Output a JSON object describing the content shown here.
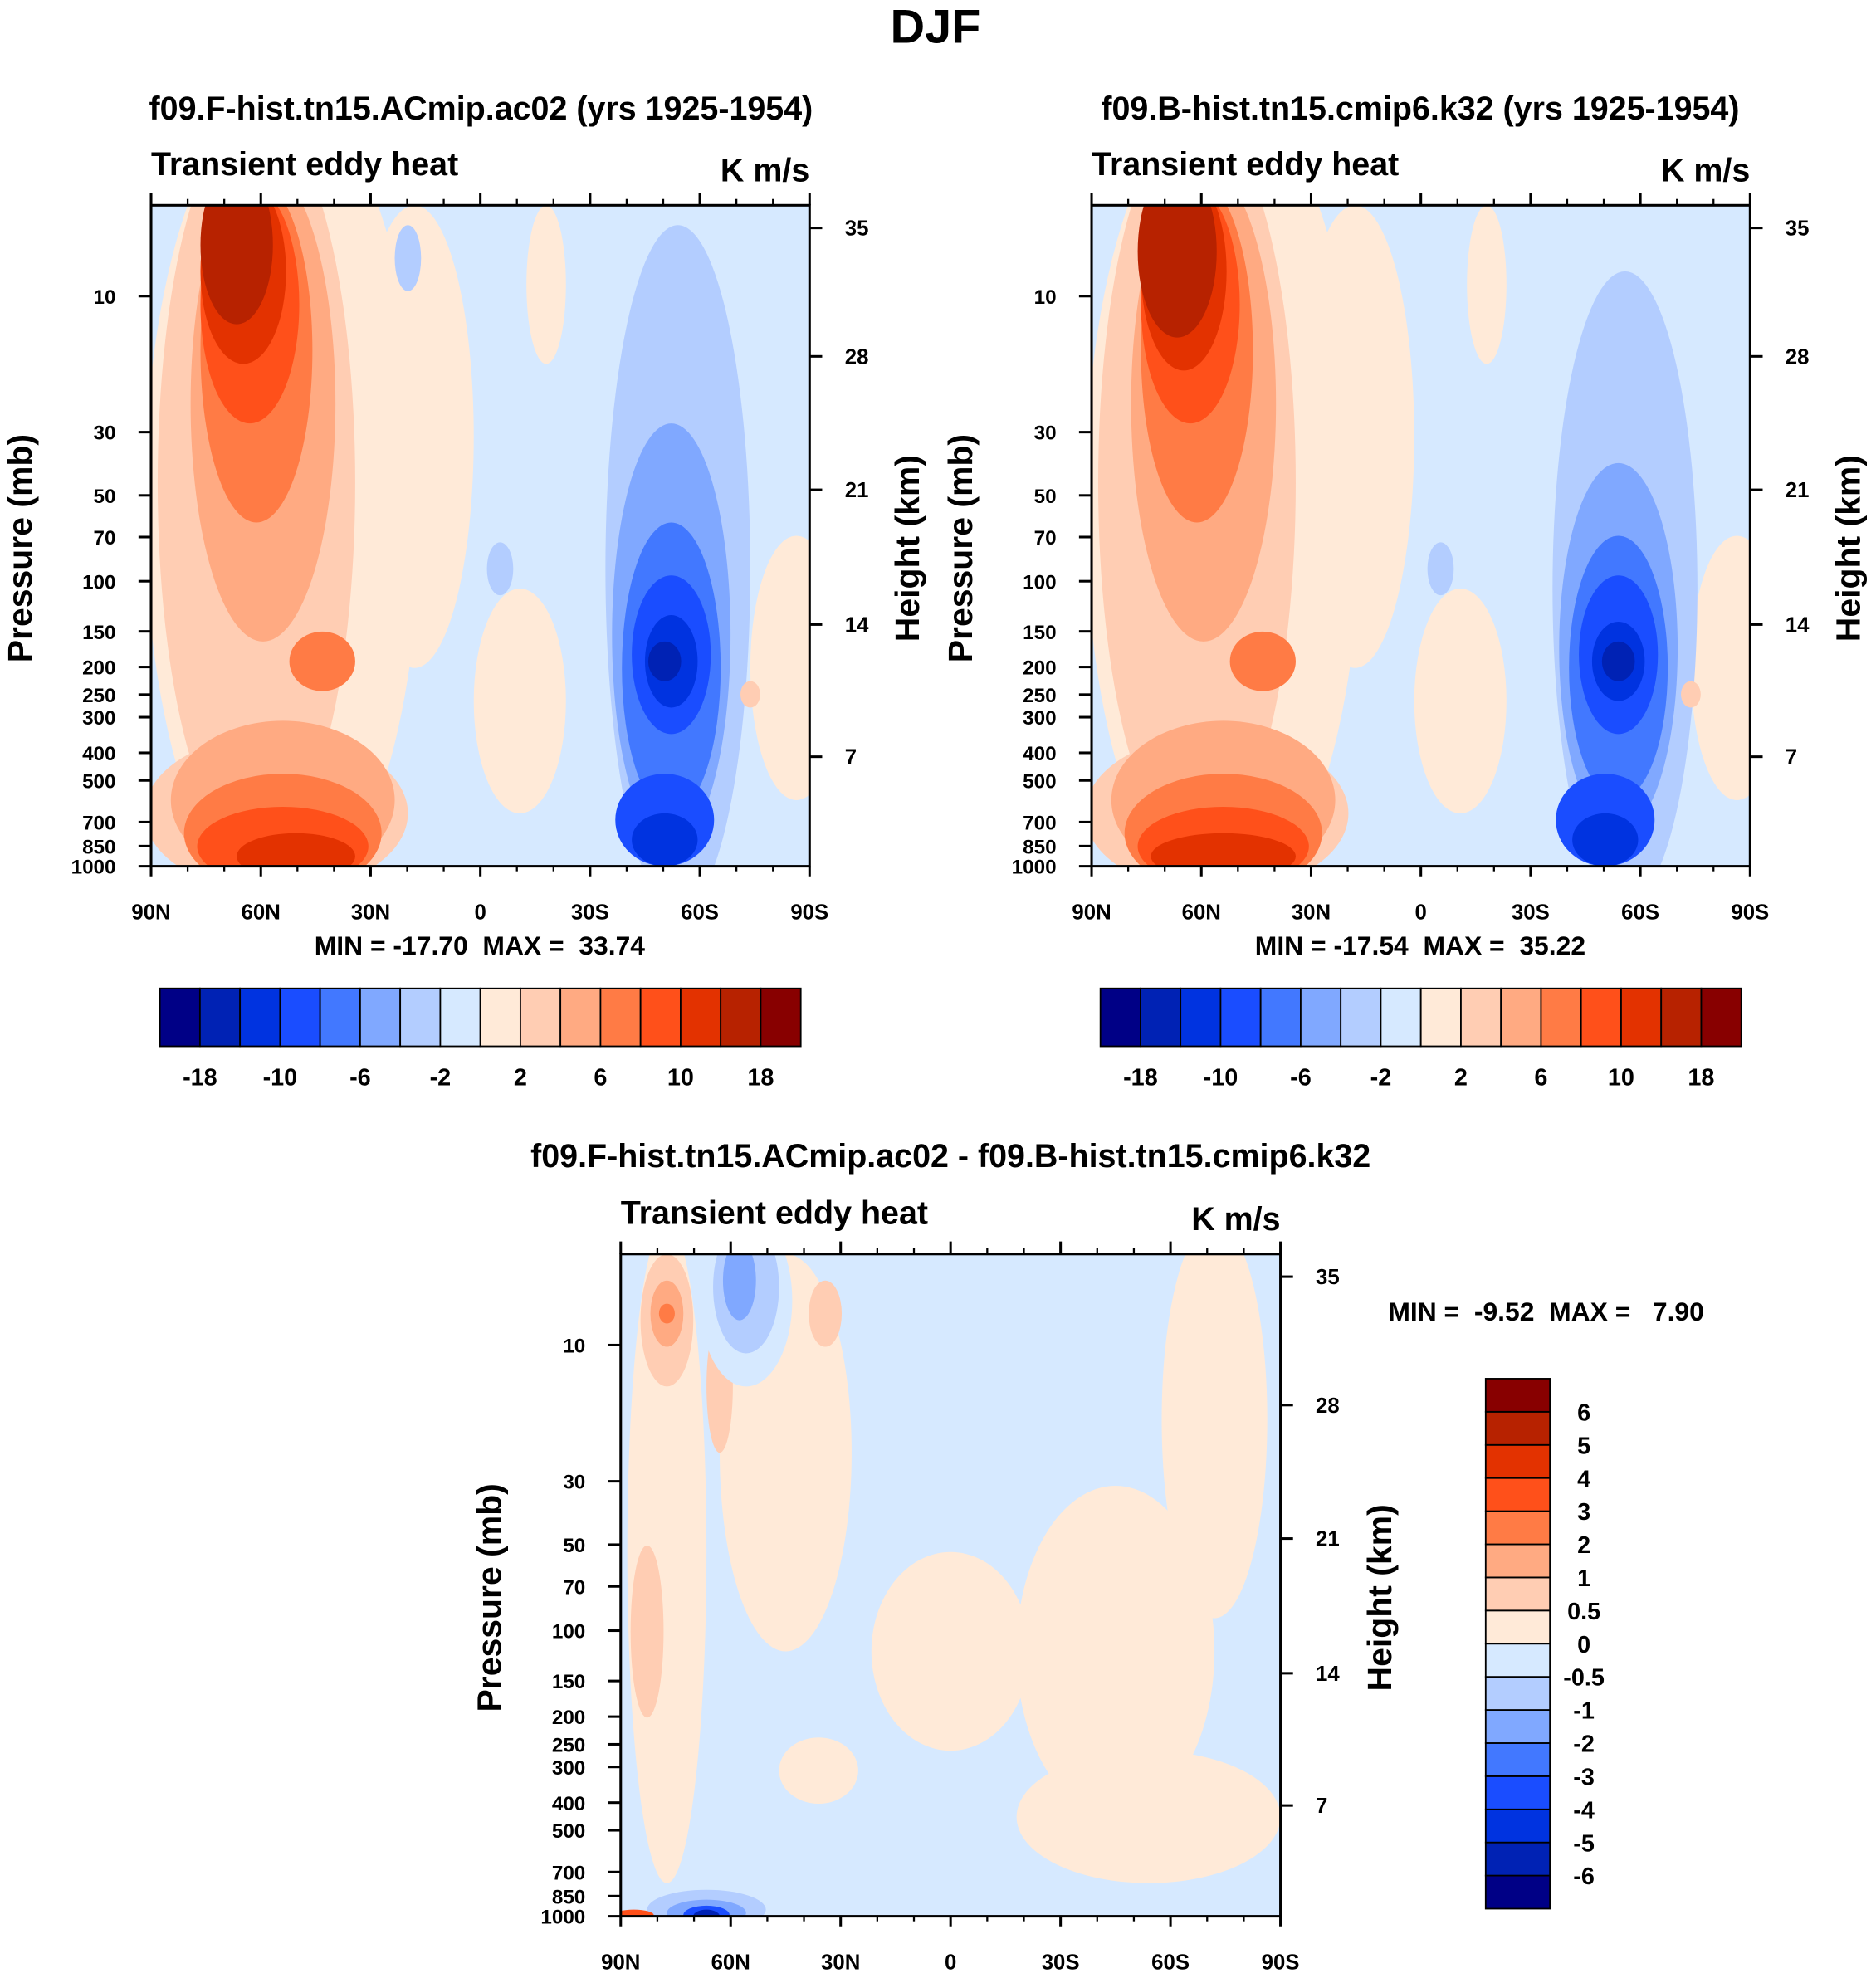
{
  "page_title": "DJF",
  "chart_data": [
    {
      "type": "heatmap",
      "title": "f09.F-hist.tn15.ACmip.ac02 (yrs 1925-1954)",
      "left_string": "Transient eddy heat",
      "right_string": "K m/s",
      "ylabel": "Pressure (mb)",
      "ylabel_right": "Height (km)",
      "x_ticks": [
        "90N",
        "60N",
        "30N",
        "0",
        "30S",
        "60S",
        "90S"
      ],
      "y_ticks": [
        "10",
        "30",
        "50",
        "70",
        "100",
        "150",
        "200",
        "250",
        "300",
        "400",
        "500",
        "700",
        "850",
        "1000"
      ],
      "y_tick_values": [
        10,
        30,
        50,
        70,
        100,
        150,
        200,
        250,
        300,
        400,
        500,
        700,
        850,
        1000
      ],
      "height_ticks": [
        "35",
        "28",
        "21",
        "14",
        "7"
      ],
      "min_max": "MIN = -17.70  MAX =  33.74",
      "colorbar_labels": [
        "-18",
        "-10",
        "-6",
        "-2",
        "2",
        "6",
        "10",
        "18"
      ],
      "colorbar_colors": [
        "#000086",
        "#0022b4",
        "#0033e0",
        "#1a4dff",
        "#4278ff",
        "#80a8ff",
        "#b3cdff",
        "#d6e9ff",
        "#ffead8",
        "#ffcdb3",
        "#ffaa82",
        "#ff7b45",
        "#ff501a",
        "#e33200",
        "#b72200",
        "#880000"
      ]
    },
    {
      "type": "heatmap",
      "title": "f09.B-hist.tn15.cmip6.k32 (yrs 1925-1954)",
      "left_string": "Transient eddy heat",
      "right_string": "K m/s",
      "ylabel": "Pressure (mb)",
      "ylabel_right": "Height (km)",
      "x_ticks": [
        "90N",
        "60N",
        "30N",
        "0",
        "30S",
        "60S",
        "90S"
      ],
      "y_ticks": [
        "10",
        "30",
        "50",
        "70",
        "100",
        "150",
        "200",
        "250",
        "300",
        "400",
        "500",
        "700",
        "850",
        "1000"
      ],
      "y_tick_values": [
        10,
        30,
        50,
        70,
        100,
        150,
        200,
        250,
        300,
        400,
        500,
        700,
        850,
        1000
      ],
      "height_ticks": [
        "35",
        "28",
        "21",
        "14",
        "7"
      ],
      "min_max": "MIN = -17.54  MAX =  35.22",
      "colorbar_labels": [
        "-18",
        "-10",
        "-6",
        "-2",
        "2",
        "6",
        "10",
        "18"
      ],
      "colorbar_colors": [
        "#000086",
        "#0022b4",
        "#0033e0",
        "#1a4dff",
        "#4278ff",
        "#80a8ff",
        "#b3cdff",
        "#d6e9ff",
        "#ffead8",
        "#ffcdb3",
        "#ffaa82",
        "#ff7b45",
        "#ff501a",
        "#e33200",
        "#b72200",
        "#880000"
      ]
    },
    {
      "type": "heatmap",
      "title": "f09.F-hist.tn15.ACmip.ac02 - f09.B-hist.tn15.cmip6.k32",
      "left_string": "Transient eddy heat",
      "right_string": "K m/s",
      "ylabel": "Pressure (mb)",
      "ylabel_right": "Height (km)",
      "x_ticks": [
        "90N",
        "60N",
        "30N",
        "0",
        "30S",
        "60S",
        "90S"
      ],
      "y_ticks": [
        "10",
        "30",
        "50",
        "70",
        "100",
        "150",
        "200",
        "250",
        "300",
        "400",
        "500",
        "700",
        "850",
        "1000"
      ],
      "y_tick_values": [
        10,
        30,
        50,
        70,
        100,
        150,
        200,
        250,
        300,
        400,
        500,
        700,
        850,
        1000
      ],
      "height_ticks": [
        "35",
        "28",
        "21",
        "14",
        "7"
      ],
      "min_max": "MIN =  -9.52  MAX =   7.90",
      "colorbar_labels": [
        "6",
        "5",
        "4",
        "3",
        "2",
        "1",
        "0.5",
        "0",
        "-0.5",
        "-1",
        "-2",
        "-3",
        "-4",
        "-5",
        "-6"
      ],
      "colorbar_colors": [
        "#000086",
        "#0022b4",
        "#0033e0",
        "#1a4dff",
        "#4278ff",
        "#80a8ff",
        "#b3cdff",
        "#d6e9ff",
        "#ffead8",
        "#ffcdb3",
        "#ffaa82",
        "#ff7b45",
        "#ff501a",
        "#e33200",
        "#b72200",
        "#880000"
      ]
    }
  ]
}
